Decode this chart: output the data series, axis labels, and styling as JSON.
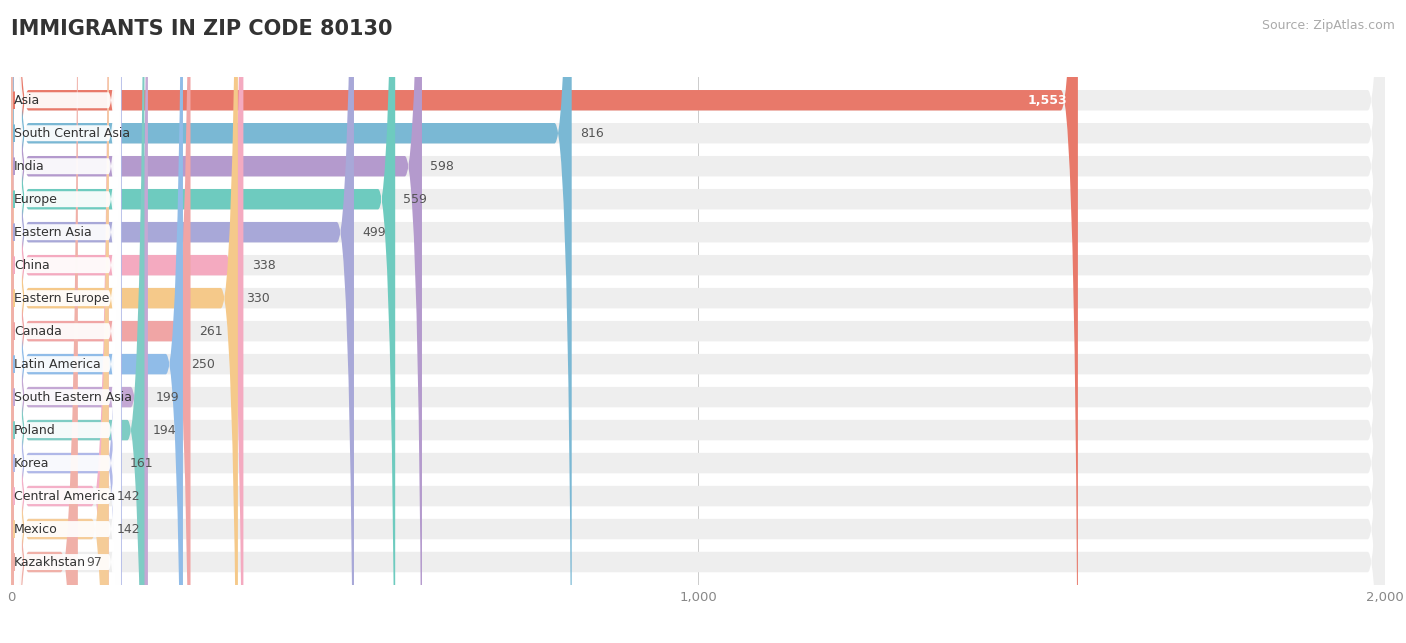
{
  "title": "IMMIGRANTS IN ZIP CODE 80130",
  "source_text": "Source: ZipAtlas.com",
  "categories": [
    "Asia",
    "South Central Asia",
    "India",
    "Europe",
    "Eastern Asia",
    "China",
    "Eastern Europe",
    "Canada",
    "Latin America",
    "South Eastern Asia",
    "Poland",
    "Korea",
    "Central America",
    "Mexico",
    "Kazakhstan"
  ],
  "values": [
    1553,
    816,
    598,
    559,
    499,
    338,
    330,
    261,
    250,
    199,
    194,
    161,
    142,
    142,
    97
  ],
  "bar_colors": [
    "#e8796a",
    "#7ab8d4",
    "#b49acd",
    "#6ecbbf",
    "#a8a8d8",
    "#f4aac0",
    "#f5c98a",
    "#f0a5a5",
    "#90bce8",
    "#c4a8d4",
    "#7eccc4",
    "#b0b8e8",
    "#f4b0c8",
    "#f5cc98",
    "#f0b0a8"
  ],
  "background_color": "#ffffff",
  "bar_bg_color": "#eeeeee",
  "xlim_max": 2000,
  "xtick_positions": [
    0,
    1000,
    2000
  ],
  "xtick_labels": [
    "0",
    "1,000",
    "2,000"
  ],
  "title_fontsize": 15,
  "source_fontsize": 9,
  "bar_label_fontsize": 9,
  "value_fontsize": 9
}
